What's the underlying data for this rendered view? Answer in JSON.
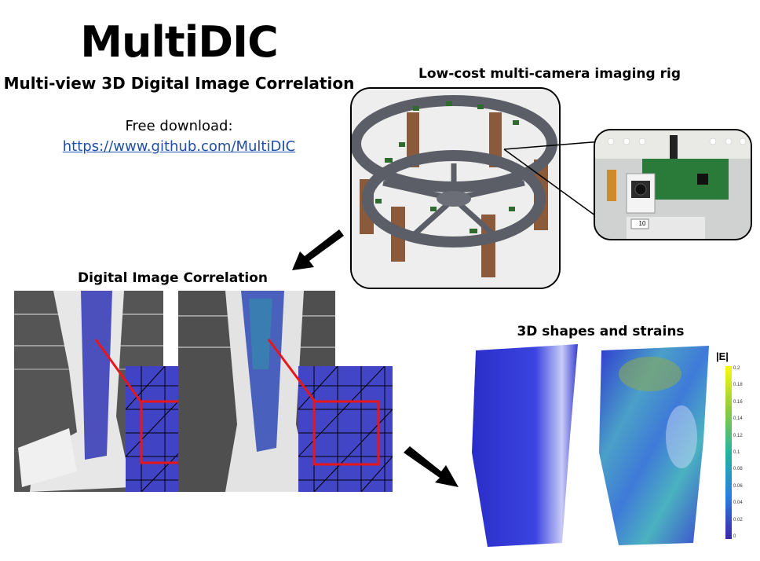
{
  "header": {
    "title": "MultiDIC",
    "subtitle": "Multi-view 3D Digital Image Correlation",
    "download_label": "Free download:",
    "download_link": "https://www.github.com/MultiDIC"
  },
  "sections": {
    "rig_heading": "Low-cost multi-camera imaging rig",
    "dic_heading": "Digital Image Correlation",
    "shapes_heading": "3D shapes and strains"
  },
  "camera": {
    "tag": "10"
  },
  "colorbar": {
    "label": "|E|",
    "ticks": [
      "0.2",
      "0.18",
      "0.16",
      "0.14",
      "0.12",
      "0.1",
      "0.08",
      "0.06",
      "0.04",
      "0.02",
      "0"
    ]
  },
  "colors": {
    "arrow": "#000000",
    "zoom_line": "#e8161b",
    "link": "#1f4fa8",
    "speckle_blue": "#3a3fc8"
  }
}
